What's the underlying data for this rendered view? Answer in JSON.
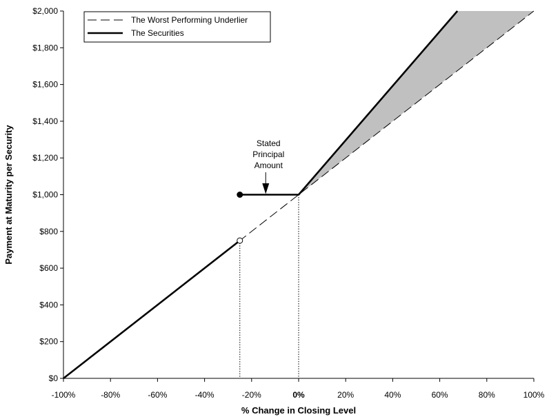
{
  "chart_data": {
    "type": "line",
    "xlabel": "% Change in Closing Level",
    "ylabel": "Payment at Maturity per Security",
    "xlim": [
      -100,
      100
    ],
    "ylim": [
      0,
      2000
    ],
    "x_ticks": [
      -100,
      -80,
      -60,
      -40,
      -20,
      0,
      20,
      40,
      60,
      80,
      100
    ],
    "x_tick_labels": [
      "-100%",
      "-80%",
      "-60%",
      "-40%",
      "-20%",
      "0%",
      "20%",
      "40%",
      "60%",
      "80%",
      "100%"
    ],
    "y_ticks": [
      0,
      200,
      400,
      600,
      800,
      1000,
      1200,
      1400,
      1600,
      1800,
      2000
    ],
    "y_tick_labels": [
      "$0",
      "$200",
      "$400",
      "$600",
      "$800",
      "$1,000",
      "$1,200",
      "$1,400",
      "$1,600",
      "$1,800",
      "$2,000"
    ],
    "grid": false,
    "legend_position": "top-left",
    "shaded_color": "#c0c0c0",
    "series": [
      {
        "name": "The Worst Performing Underlier",
        "style": "dashed",
        "points": [
          [
            -100,
            0
          ],
          [
            100,
            2000
          ]
        ]
      },
      {
        "name": "The Securities",
        "style": "solid-thick",
        "segments": [
          [
            [
              -100,
              0
            ],
            [
              -25,
              750
            ]
          ],
          [
            [
              -25,
              1000
            ],
            [
              0,
              1000
            ]
          ],
          [
            [
              0,
              1000
            ],
            [
              67.5,
              2000
            ]
          ]
        ],
        "markers": [
          {
            "point": [
              -25,
              750
            ],
            "fill": "open"
          },
          {
            "point": [
              -25,
              1000
            ],
            "fill": "filled"
          }
        ]
      }
    ],
    "vertical_reference_lines": [
      -25,
      0
    ],
    "annotations": [
      {
        "lines": [
          "Stated",
          "Principal",
          "Amount"
        ],
        "arrow_to": [
          -14,
          1000
        ]
      }
    ]
  }
}
